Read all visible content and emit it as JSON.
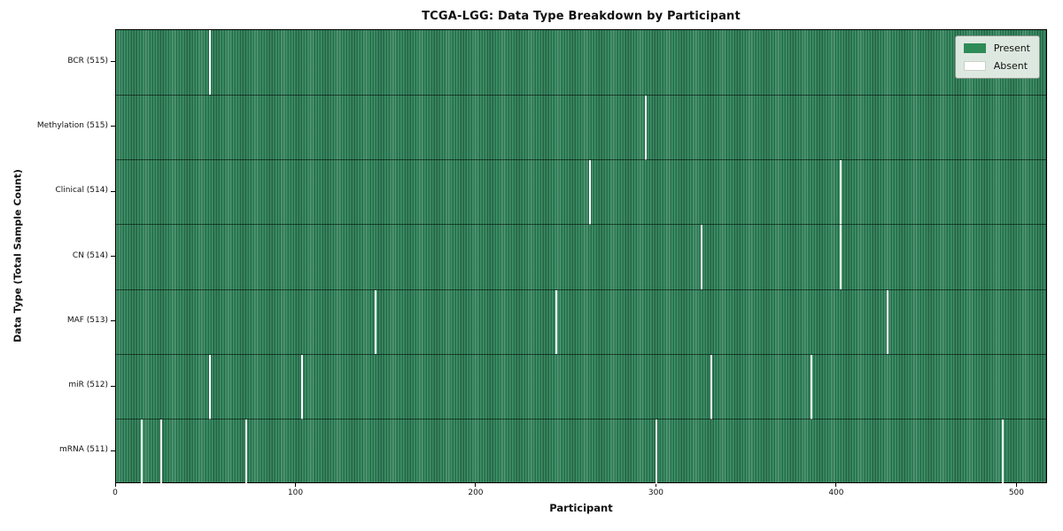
{
  "chart_data": {
    "type": "heatmap",
    "title": "TCGA-LGG: Data Type Breakdown by Participant",
    "xlabel": "Participant",
    "ylabel": "Data Type (Total Sample Count)",
    "x_ticks": [
      0,
      100,
      200,
      300,
      400,
      500
    ],
    "x_range": [
      0,
      517
    ],
    "total_participants": 516,
    "grid": false,
    "rows": [
      {
        "label": "BCR (515)",
        "data_type": "BCR",
        "present_count": 515,
        "absent_participants": [
          52
        ]
      },
      {
        "label": "Methylation (515)",
        "data_type": "Methylation",
        "present_count": 515,
        "absent_participants": [
          294
        ]
      },
      {
        "label": "Clinical (514)",
        "data_type": "Clinical",
        "present_count": 514,
        "absent_participants": [
          263,
          402
        ]
      },
      {
        "label": "CN (514)",
        "data_type": "CN",
        "present_count": 514,
        "absent_participants": [
          325,
          402
        ]
      },
      {
        "label": "MAF (513)",
        "data_type": "MAF",
        "present_count": 513,
        "absent_participants": [
          144,
          244,
          428
        ]
      },
      {
        "label": "miR (512)",
        "data_type": "miR",
        "present_count": 512,
        "absent_participants": [
          52,
          103,
          330,
          386
        ]
      },
      {
        "label": "mRNA (511)",
        "data_type": "mRNA",
        "present_count": 511,
        "absent_participants": [
          14,
          25,
          72,
          300,
          492
        ]
      }
    ],
    "legend": {
      "position": "upper right",
      "entries": [
        {
          "label": "Present",
          "color": "#2e8b57"
        },
        {
          "label": "Absent",
          "color": "#ffffff"
        }
      ]
    },
    "colors": {
      "present": "#2e8b57",
      "absent": "#ffffff",
      "stripe_light": "#3f9468",
      "stripe_dark": "#276a4b",
      "divider": "#1c3b2a"
    }
  }
}
